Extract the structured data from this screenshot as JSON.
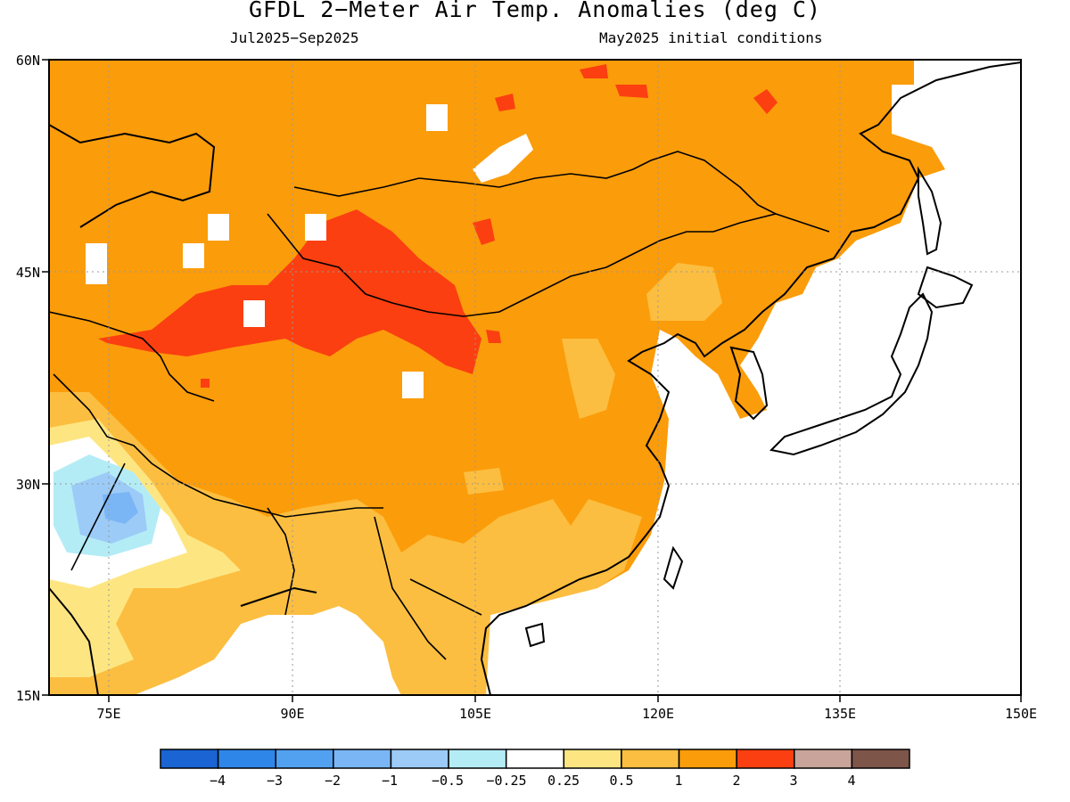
{
  "title": "GFDL 2−Meter Air Temp. Anomalies (deg C)",
  "period": "Jul2025−Sep2025",
  "initial_conditions": "May2025 initial conditions",
  "map": {
    "lat_labels": [
      "60N",
      "45N",
      "30N",
      "15N"
    ],
    "lon_labels": [
      "75E",
      "90E",
      "105E",
      "120E",
      "135E",
      "150E"
    ],
    "lat_range": [
      15,
      60
    ],
    "lon_range": [
      70,
      150
    ],
    "gridlines": "dotted",
    "land_mask": "ocean masked white",
    "highlights": [
      {
        "region": "northwest China / western Mongolia",
        "category": "2 to 3"
      },
      {
        "region": "India (Pakistan border)",
        "category": "-2 to -1"
      },
      {
        "region": "most of China, Mongolia, Siberia",
        "category": "1 to 2"
      }
    ]
  },
  "colorbar": {
    "labels": [
      "−4",
      "−3",
      "−2",
      "−1",
      "−0.5",
      "−0.25",
      "0.25",
      "0.5",
      "1",
      "2",
      "3",
      "4"
    ],
    "colors": [
      "#1a64d4",
      "#2e86e8",
      "#52a0f0",
      "#7ab6f5",
      "#9ccbf7",
      "#b4ecf6",
      "#ffffff",
      "#fde682",
      "#fcbe40",
      "#fb9c0a",
      "#fb3f11",
      "#c8a49a",
      "#7d5549"
    ]
  }
}
